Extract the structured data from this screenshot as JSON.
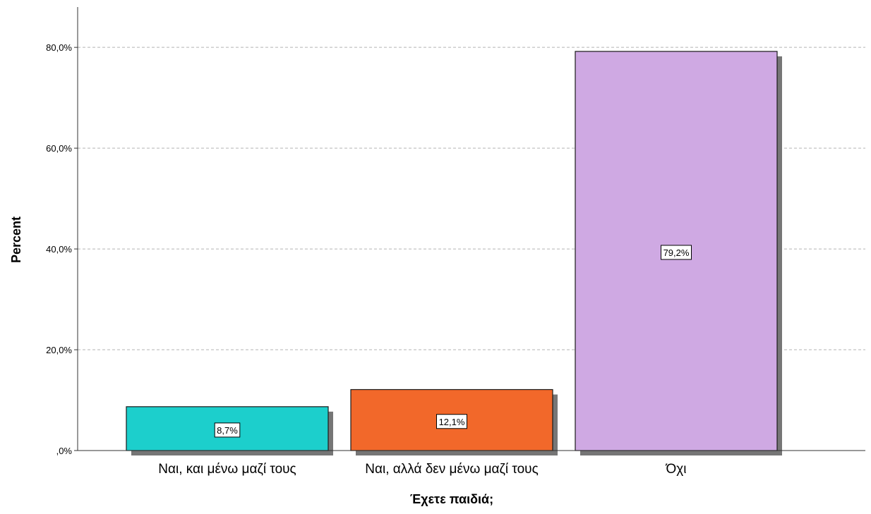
{
  "chart_data": {
    "type": "bar",
    "categories": [
      "Ναι, και μένω μαζί τους",
      "Ναι, αλλά δεν μένω μαζί τους",
      "Όχι"
    ],
    "values": [
      8.7,
      12.1,
      79.2
    ],
    "data_labels": [
      "8,7%",
      "12,1%",
      "79,2%"
    ],
    "colors": [
      "#1ccfcc",
      "#f2682a",
      "#cfa9e3"
    ],
    "title": "",
    "xlabel": "Έχετε παιδιά;",
    "ylabel": "Percent",
    "ylim": [
      0,
      88
    ],
    "yticks": [
      0,
      20,
      40,
      60,
      80
    ],
    "ytick_labels": [
      ",0%",
      "20,0%",
      "40,0%",
      "60,0%",
      "80,0%"
    ],
    "grid": true,
    "legend": "none"
  }
}
